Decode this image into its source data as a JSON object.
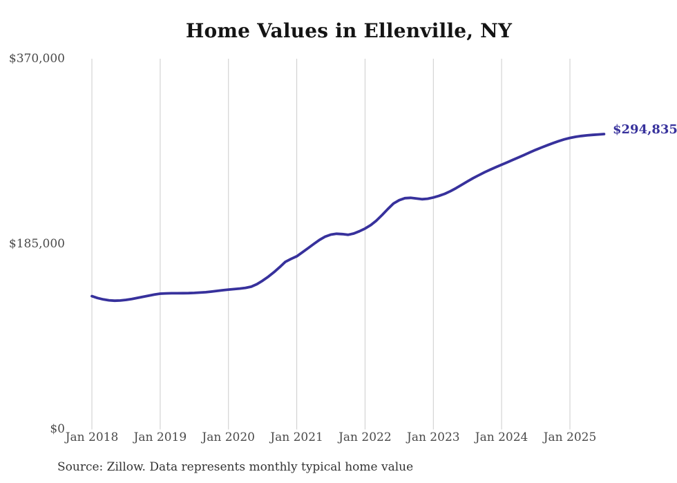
{
  "chart_data": {
    "type": "line",
    "title": "Home Values in Ellenville, NY",
    "source_note": "Source: Zillow. Data represents monthly typical home value",
    "end_label": "$294,835",
    "latest_value": 294835,
    "ylim": [
      0,
      370000
    ],
    "grid": "vertical-only",
    "legend": "none",
    "line_color": "#37319c",
    "grid_color": "#cbcbcb",
    "title_color": "#141414",
    "axis_label_color": "#4a4a4a",
    "source_color": "#333333",
    "y_ticks": [
      {
        "label": "$0",
        "value": 0
      },
      {
        "label": "$185,000",
        "value": 185000
      },
      {
        "label": "$370,000",
        "value": 370000
      }
    ],
    "x_ticks": [
      {
        "label": "Jan 2018",
        "month_index": 0
      },
      {
        "label": "Jan 2019",
        "month_index": 12
      },
      {
        "label": "Jan 2020",
        "month_index": 24
      },
      {
        "label": "Jan 2021",
        "month_index": 36
      },
      {
        "label": "Jan 2022",
        "month_index": 48
      },
      {
        "label": "Jan 2023",
        "month_index": 60
      },
      {
        "label": "Jan 2024",
        "month_index": 72
      },
      {
        "label": "Jan 2025",
        "month_index": 84
      }
    ],
    "x": [
      "2018-01",
      "2018-02",
      "2018-03",
      "2018-04",
      "2018-05",
      "2018-06",
      "2018-07",
      "2018-08",
      "2018-09",
      "2018-10",
      "2018-11",
      "2018-12",
      "2019-01",
      "2019-02",
      "2019-03",
      "2019-04",
      "2019-05",
      "2019-06",
      "2019-07",
      "2019-08",
      "2019-09",
      "2019-10",
      "2019-11",
      "2019-12",
      "2020-01",
      "2020-02",
      "2020-03",
      "2020-04",
      "2020-05",
      "2020-06",
      "2020-07",
      "2020-08",
      "2020-09",
      "2020-10",
      "2020-11",
      "2020-12",
      "2021-01",
      "2021-02",
      "2021-03",
      "2021-04",
      "2021-05",
      "2021-06",
      "2021-07",
      "2021-08",
      "2021-09",
      "2021-10",
      "2021-11",
      "2021-12",
      "2022-01",
      "2022-02",
      "2022-03",
      "2022-04",
      "2022-05",
      "2022-06",
      "2022-07",
      "2022-08",
      "2022-09",
      "2022-10",
      "2022-11",
      "2022-12",
      "2023-01",
      "2023-02",
      "2023-03",
      "2023-04",
      "2023-05",
      "2023-06",
      "2023-07",
      "2023-08",
      "2023-09",
      "2023-10",
      "2023-11",
      "2023-12",
      "2024-01",
      "2024-02",
      "2024-03",
      "2024-04",
      "2024-05",
      "2024-06",
      "2024-07",
      "2024-08",
      "2024-09",
      "2024-10",
      "2024-11",
      "2024-12",
      "2025-01",
      "2025-02",
      "2025-03",
      "2025-04",
      "2025-05",
      "2025-06",
      "2025-07"
    ],
    "values": [
      133000,
      131200,
      129800,
      128900,
      128500,
      128700,
      129300,
      130200,
      131300,
      132400,
      133500,
      134600,
      135500,
      135800,
      135900,
      135900,
      136000,
      136100,
      136300,
      136600,
      137000,
      137600,
      138300,
      139000,
      139600,
      140100,
      140600,
      141300,
      142500,
      145000,
      148500,
      152500,
      157000,
      162000,
      167300,
      170200,
      172800,
      176800,
      181000,
      185200,
      189200,
      192500,
      194500,
      195300,
      195000,
      194300,
      195500,
      197800,
      200500,
      204000,
      208500,
      214000,
      220000,
      225500,
      228800,
      230800,
      231200,
      230500,
      229800,
      230300,
      231500,
      233200,
      235200,
      237800,
      240800,
      244200,
      247600,
      250800,
      253800,
      256700,
      259300,
      261800,
      264200,
      266600,
      269100,
      271600,
      274100,
      276600,
      279100,
      281400,
      283600,
      285700,
      287700,
      289500,
      291000,
      292100,
      292900,
      293500,
      294000,
      294400,
      294835
    ]
  }
}
